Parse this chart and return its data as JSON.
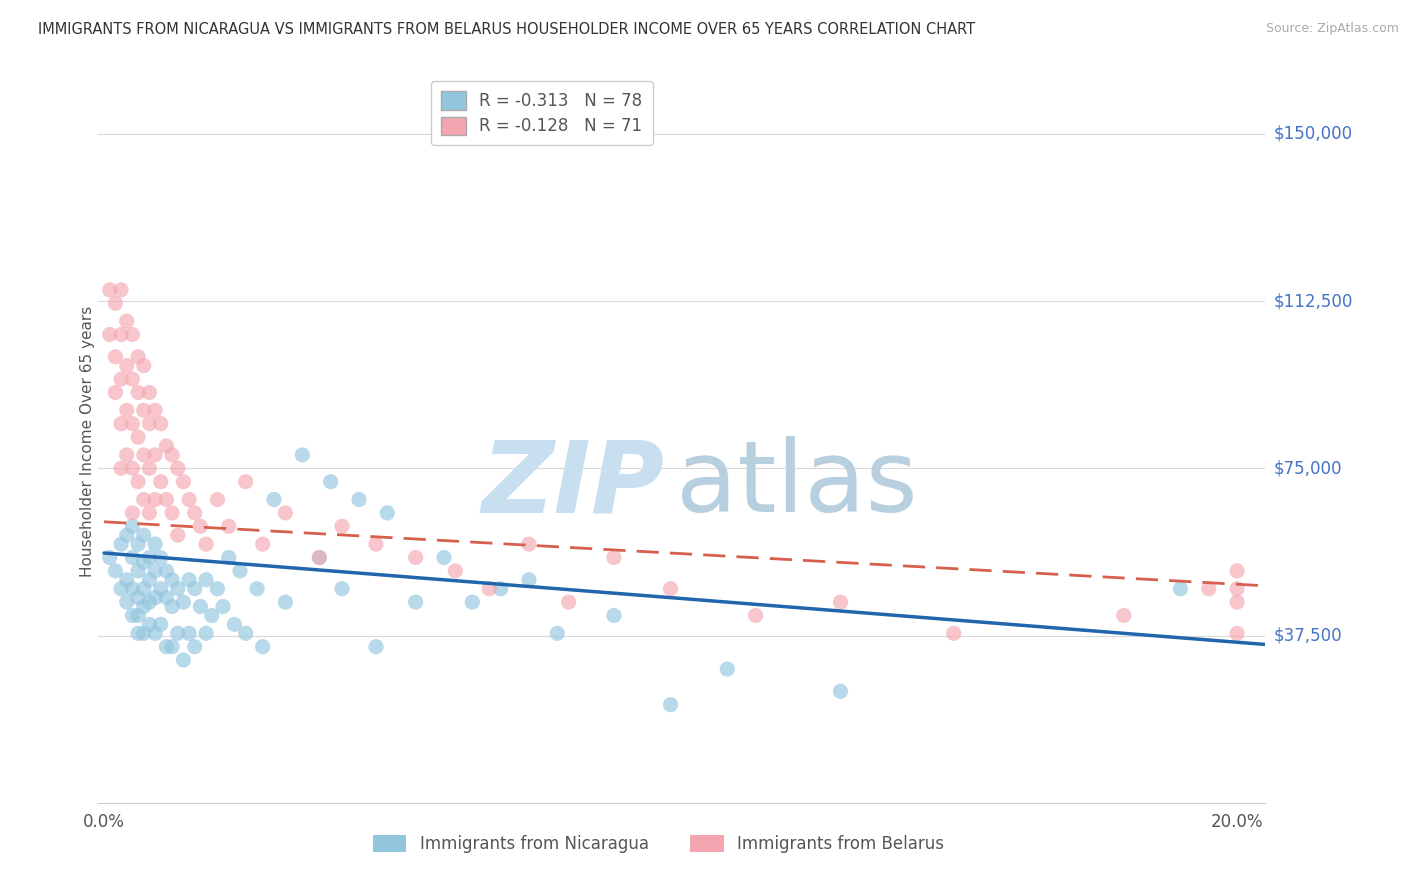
{
  "title": "IMMIGRANTS FROM NICARAGUA VS IMMIGRANTS FROM BELARUS HOUSEHOLDER INCOME OVER 65 YEARS CORRELATION CHART",
  "source": "Source: ZipAtlas.com",
  "ylabel": "Householder Income Over 65 years",
  "xlim": [
    -0.001,
    0.205
  ],
  "ylim": [
    0,
    162000
  ],
  "yticks": [
    0,
    37500,
    75000,
    112500,
    150000
  ],
  "ytick_labels": [
    "",
    "$37,500",
    "$75,000",
    "$112,500",
    "$150,000"
  ],
  "xticks": [
    0.0,
    0.05,
    0.1,
    0.15,
    0.2
  ],
  "xtick_labels": [
    "0.0%",
    "",
    "",
    "",
    "20.0%"
  ],
  "legend_line1": "R = -0.313   N = 78",
  "legend_line2": "R = -0.128   N = 71",
  "legend_labels_bottom": [
    "Immigrants from Nicaragua",
    "Immigrants from Belarus"
  ],
  "nicaragua_color": "#92c5de",
  "belarus_color": "#f4a6b0",
  "regression_nicaragua_color": "#2166ac",
  "regression_belarus_color": "#d6604d",
  "grid_color": "#d9d9d9",
  "title_color": "#444444",
  "axis_label_color": "#555555",
  "ytick_color": "#4472c4",
  "nicaragua_x": [
    0.001,
    0.002,
    0.003,
    0.003,
    0.004,
    0.004,
    0.004,
    0.005,
    0.005,
    0.005,
    0.005,
    0.006,
    0.006,
    0.006,
    0.006,
    0.006,
    0.007,
    0.007,
    0.007,
    0.007,
    0.007,
    0.008,
    0.008,
    0.008,
    0.008,
    0.009,
    0.009,
    0.009,
    0.009,
    0.01,
    0.01,
    0.01,
    0.011,
    0.011,
    0.011,
    0.012,
    0.012,
    0.012,
    0.013,
    0.013,
    0.014,
    0.014,
    0.015,
    0.015,
    0.016,
    0.016,
    0.017,
    0.018,
    0.018,
    0.019,
    0.02,
    0.021,
    0.022,
    0.023,
    0.024,
    0.025,
    0.027,
    0.028,
    0.03,
    0.032,
    0.035,
    0.038,
    0.04,
    0.042,
    0.045,
    0.048,
    0.05,
    0.055,
    0.06,
    0.065,
    0.07,
    0.075,
    0.08,
    0.09,
    0.1,
    0.11,
    0.13,
    0.19
  ],
  "nicaragua_y": [
    55000,
    52000,
    58000,
    48000,
    60000,
    45000,
    50000,
    62000,
    55000,
    48000,
    42000,
    58000,
    52000,
    46000,
    42000,
    38000,
    60000,
    54000,
    48000,
    44000,
    38000,
    55000,
    50000,
    45000,
    40000,
    58000,
    52000,
    46000,
    38000,
    55000,
    48000,
    40000,
    52000,
    46000,
    35000,
    50000,
    44000,
    35000,
    48000,
    38000,
    45000,
    32000,
    50000,
    38000,
    48000,
    35000,
    44000,
    50000,
    38000,
    42000,
    48000,
    44000,
    55000,
    40000,
    52000,
    38000,
    48000,
    35000,
    68000,
    45000,
    78000,
    55000,
    72000,
    48000,
    68000,
    35000,
    65000,
    45000,
    55000,
    45000,
    48000,
    50000,
    38000,
    42000,
    22000,
    30000,
    25000,
    48000
  ],
  "belarus_x": [
    0.001,
    0.001,
    0.002,
    0.002,
    0.002,
    0.003,
    0.003,
    0.003,
    0.003,
    0.003,
    0.004,
    0.004,
    0.004,
    0.004,
    0.005,
    0.005,
    0.005,
    0.005,
    0.005,
    0.006,
    0.006,
    0.006,
    0.006,
    0.007,
    0.007,
    0.007,
    0.007,
    0.008,
    0.008,
    0.008,
    0.008,
    0.009,
    0.009,
    0.009,
    0.01,
    0.01,
    0.011,
    0.011,
    0.012,
    0.012,
    0.013,
    0.013,
    0.014,
    0.015,
    0.016,
    0.017,
    0.018,
    0.02,
    0.022,
    0.025,
    0.028,
    0.032,
    0.038,
    0.042,
    0.048,
    0.055,
    0.062,
    0.068,
    0.075,
    0.082,
    0.09,
    0.1,
    0.115,
    0.13,
    0.15,
    0.18,
    0.195,
    0.2,
    0.2,
    0.2,
    0.2
  ],
  "belarus_y": [
    115000,
    105000,
    112000,
    100000,
    92000,
    115000,
    105000,
    95000,
    85000,
    75000,
    108000,
    98000,
    88000,
    78000,
    105000,
    95000,
    85000,
    75000,
    65000,
    100000,
    92000,
    82000,
    72000,
    98000,
    88000,
    78000,
    68000,
    92000,
    85000,
    75000,
    65000,
    88000,
    78000,
    68000,
    85000,
    72000,
    80000,
    68000,
    78000,
    65000,
    75000,
    60000,
    72000,
    68000,
    65000,
    62000,
    58000,
    68000,
    62000,
    72000,
    58000,
    65000,
    55000,
    62000,
    58000,
    55000,
    52000,
    48000,
    58000,
    45000,
    55000,
    48000,
    42000,
    45000,
    38000,
    42000,
    48000,
    52000,
    45000,
    38000,
    48000
  ]
}
